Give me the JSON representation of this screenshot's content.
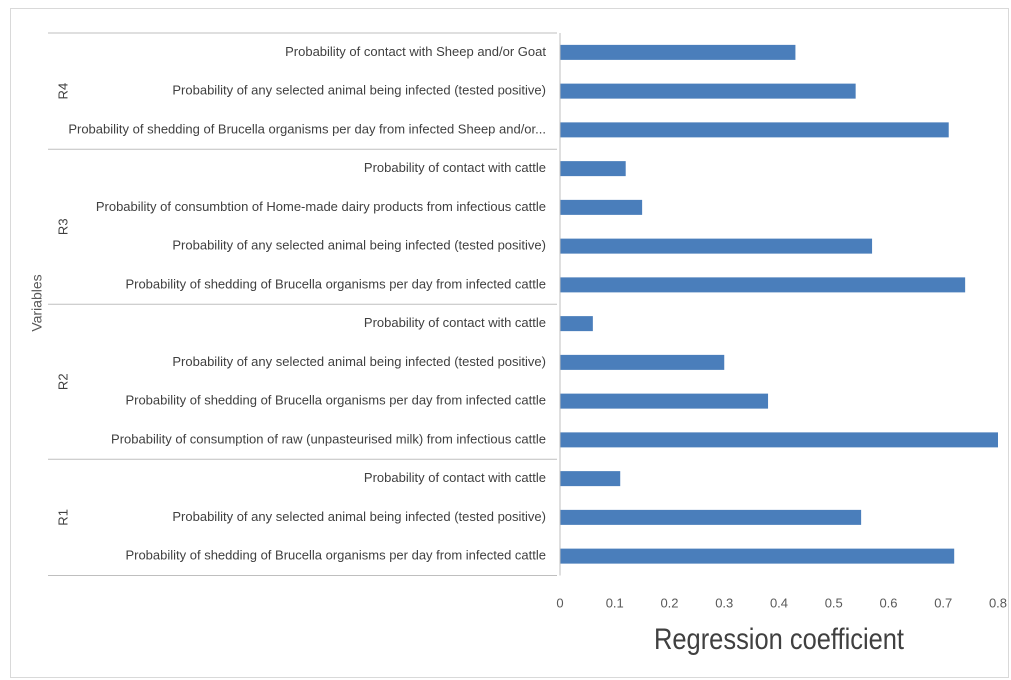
{
  "chart_data": {
    "type": "bar",
    "orientation": "horizontal",
    "title": "",
    "xlabel": "Regression coefficient",
    "ylabel": "Variables",
    "xlim": [
      0,
      0.8
    ],
    "xticks": [
      "0",
      "0.1",
      "0.2",
      "0.3",
      "0.4",
      "0.5",
      "0.6",
      "0.7",
      "0.8"
    ],
    "grid": false,
    "legend": "none",
    "bar_color": "#4a7ebb",
    "groups": [
      {
        "name": "R4",
        "items": [
          {
            "label": "Probability of contact with Sheep and/or Goat",
            "value": 0.43
          },
          {
            "label": "Probability of any selected animal being infected (tested positive)",
            "value": 0.54
          },
          {
            "label": "Probability of shedding of Brucella organisms per day from infected Sheep and/or...",
            "value": 0.71
          }
        ]
      },
      {
        "name": "R3",
        "items": [
          {
            "label": "Probability of contact with cattle",
            "value": 0.12
          },
          {
            "label": "Probability of consumbtion of Home-made dairy products from infectious cattle",
            "value": 0.15
          },
          {
            "label": "Probability of any selected animal being infected (tested positive)",
            "value": 0.57
          },
          {
            "label": "Probability of shedding of Brucella organisms per day from infected cattle",
            "value": 0.74
          }
        ]
      },
      {
        "name": "R2",
        "items": [
          {
            "label": "Probability of contact with cattle",
            "value": 0.06
          },
          {
            "label": "Probability of any selected animal being infected (tested positive)",
            "value": 0.3
          },
          {
            "label": "Probability of shedding of Brucella organisms per day from infected cattle",
            "value": 0.38
          },
          {
            "label": "Probability of consumption of raw (unpasteurised milk) from infectious cattle",
            "value": 0.8
          }
        ]
      },
      {
        "name": "R1",
        "items": [
          {
            "label": "Probability of contact with cattle",
            "value": 0.11
          },
          {
            "label": "Probability of any selected animal being infected (tested positive)",
            "value": 0.55
          },
          {
            "label": "Probability of shedding of Brucella organisms per day from infected cattle",
            "value": 0.72
          }
        ]
      }
    ]
  }
}
